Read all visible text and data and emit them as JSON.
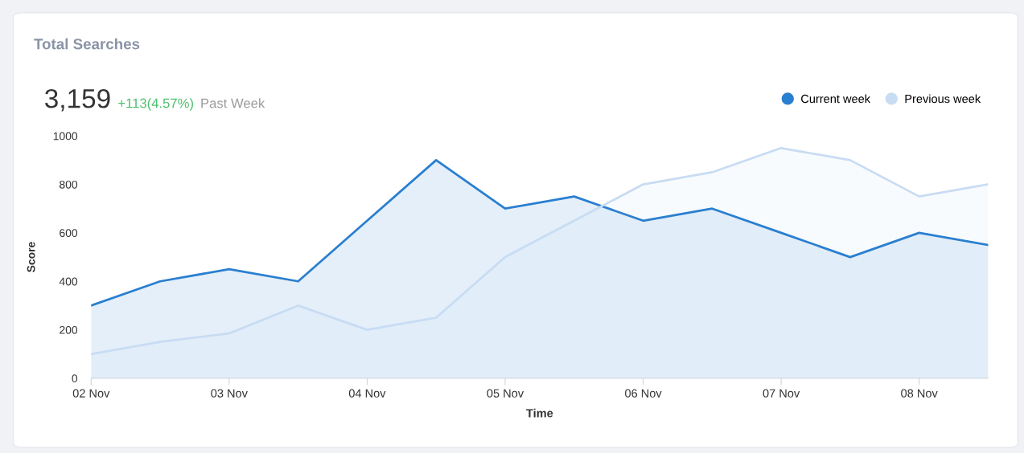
{
  "chart_data": {
    "type": "area",
    "title": "Total Searches",
    "annotations": [
      "3,159",
      "+113(4.57%)",
      "Past Week"
    ],
    "xlabel": "Time",
    "ylabel": "Score",
    "categories": [
      "02 Nov",
      null,
      "03 Nov",
      null,
      "04 Nov",
      null,
      "05 Nov",
      null,
      "06 Nov",
      null,
      "07 Nov",
      null,
      "08 Nov",
      null
    ],
    "series": [
      {
        "name": "Current week",
        "color": "#2a7fd0",
        "values": [
          300,
          400,
          450,
          400,
          650,
          900,
          700,
          750,
          650,
          700,
          600,
          500,
          600,
          550
        ]
      },
      {
        "name": "Previous week",
        "color": "#c8dcf3",
        "values": [
          100,
          150,
          185,
          300,
          200,
          250,
          500,
          650,
          800,
          850,
          950,
          900,
          750,
          800
        ]
      }
    ],
    "ylim": [
      0,
      1000
    ],
    "yticks": [
      0,
      200,
      400,
      600,
      800,
      1000
    ],
    "grid": false,
    "legend": "top right",
    "marker": "none",
    "line_style": "solid"
  }
}
